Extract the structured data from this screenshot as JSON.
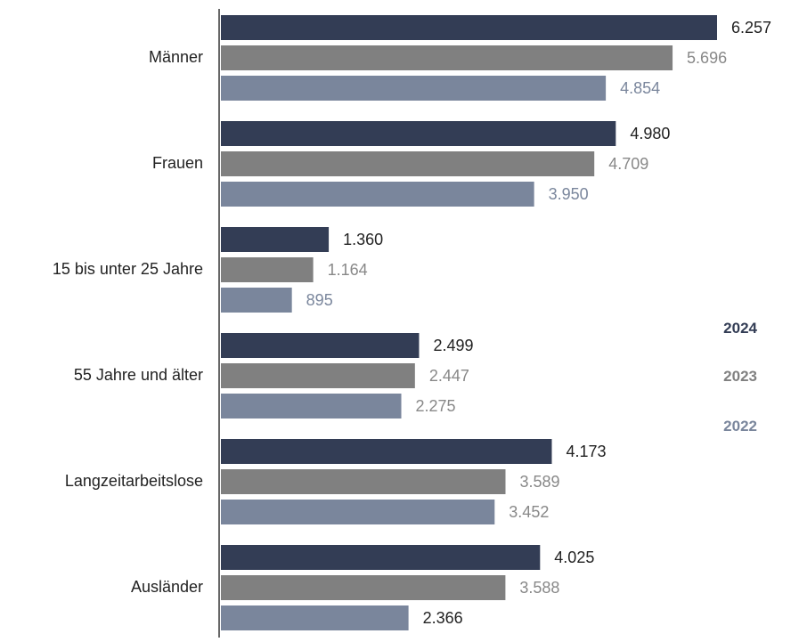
{
  "chart_data": {
    "type": "bar",
    "orientation": "horizontal",
    "title": "",
    "xlabel": "",
    "ylabel": "",
    "categories": [
      "Männer",
      "Frauen",
      "15 bis unter 25 Jahre",
      "55 Jahre und älter",
      "Langzeitarbeitslose",
      "Ausländer"
    ],
    "series": [
      {
        "name": "2024",
        "color": "#333d55",
        "values": [
          6257,
          4980,
          1360,
          2499,
          4173,
          4025
        ],
        "labels": [
          "6.257",
          "4.980",
          "1.360",
          "2.499",
          "4.173",
          "4.025"
        ],
        "label_color": "#222222"
      },
      {
        "name": "2023",
        "color": "#808080",
        "values": [
          5696,
          4709,
          1164,
          2447,
          3589,
          3588
        ],
        "labels": [
          "5.696",
          "4.709",
          "1.164",
          "2.447",
          "3.589",
          "3.588"
        ],
        "label_color": "#888888"
      },
      {
        "name": "2022",
        "color": "#7a869c",
        "values": [
          4854,
          3950,
          895,
          2275,
          3452,
          2366
        ],
        "labels": [
          "4.854",
          "3.950",
          "895",
          "2.275",
          "3.452",
          "2.366"
        ],
        "label_color_per_bar": [
          "#7a869c",
          "#7a869c",
          "#7a869c",
          "#888888",
          "#888888",
          "#222222"
        ]
      }
    ],
    "xlim": [
      0,
      7000
    ],
    "grid": false,
    "legend": {
      "position": "right",
      "entries": [
        "2024",
        "2023",
        "2022"
      ]
    }
  }
}
